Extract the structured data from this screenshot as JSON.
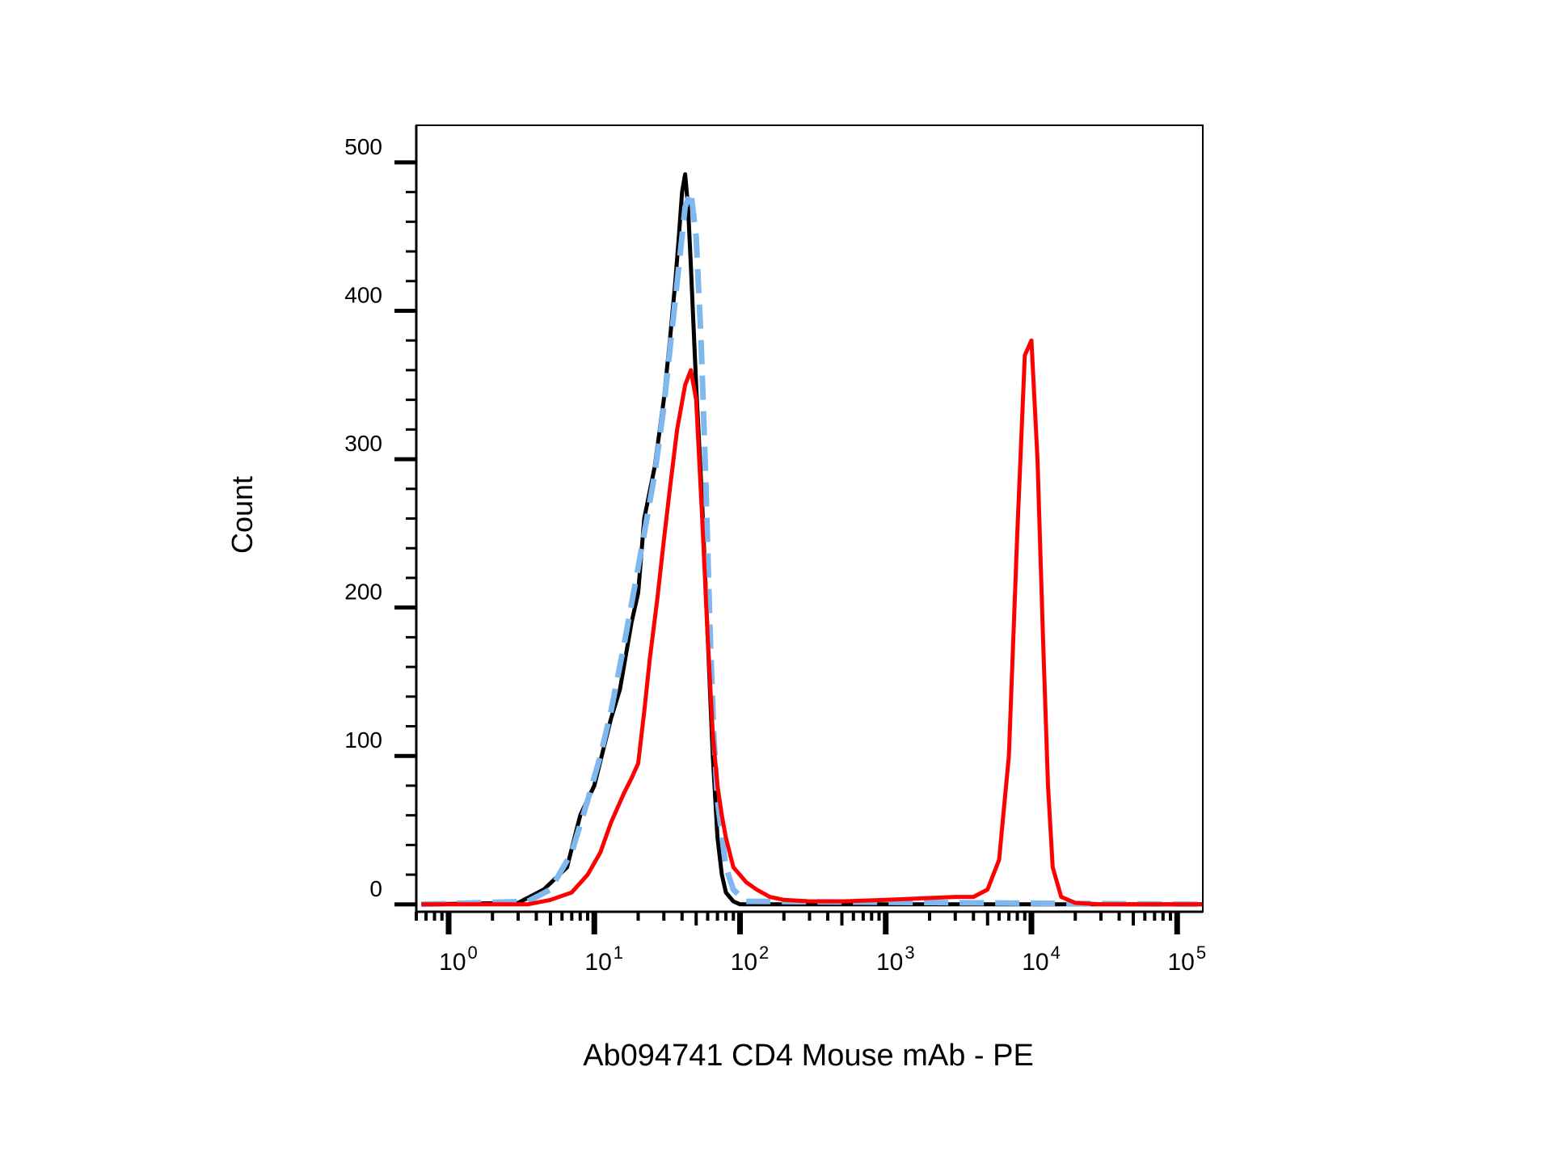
{
  "chart_data": {
    "type": "line",
    "title": "",
    "xlabel": "Ab094741 CD4 Mouse mAb - PE",
    "ylabel": "Count",
    "xscale": "log",
    "xlim": [
      0.6,
      150000
    ],
    "ylim": [
      -5,
      525
    ],
    "yticks": [
      0,
      100,
      200,
      300,
      400,
      500
    ],
    "ytick_labels": [
      "0",
      "100",
      "200",
      "300",
      "400",
      "500"
    ],
    "xticks": [
      1,
      10,
      100,
      1000,
      10000,
      100000
    ],
    "xtick_labels": [
      {
        "base": "10",
        "exp": "0"
      },
      {
        "base": "10",
        "exp": "1"
      },
      {
        "base": "10",
        "exp": "2"
      },
      {
        "base": "10",
        "exp": "3"
      },
      {
        "base": "10",
        "exp": "4"
      },
      {
        "base": "10",
        "exp": "5"
      }
    ],
    "grid": false,
    "legend": "none",
    "series": [
      {
        "color": "#000000",
        "dash": "solid",
        "x": [
          0.65,
          3,
          4.5,
          6.5,
          8,
          10,
          13,
          15,
          18,
          20,
          22,
          26,
          30,
          33,
          36,
          38,
          40,
          42,
          44,
          46,
          50,
          55,
          60,
          65,
          70,
          75,
          80,
          90,
          100,
          150000
        ],
        "y": [
          0,
          1,
          10,
          25,
          60,
          80,
          125,
          145,
          190,
          210,
          260,
          295,
          340,
          380,
          420,
          450,
          480,
          492,
          470,
          430,
          350,
          270,
          180,
          100,
          45,
          20,
          8,
          2,
          0,
          0
        ]
      },
      {
        "color": "#7fb8ee",
        "dash": "dashed",
        "x": [
          0.65,
          3.5,
          5,
          7,
          9,
          11,
          13,
          16,
          19,
          22,
          26,
          30,
          34,
          38,
          42,
          46,
          50,
          54,
          58,
          62,
          66,
          70,
          80,
          90,
          110,
          150000
        ],
        "y": [
          0,
          2,
          10,
          35,
          70,
          100,
          130,
          175,
          215,
          250,
          290,
          335,
          385,
          430,
          470,
          480,
          450,
          380,
          290,
          190,
          115,
          70,
          25,
          10,
          2,
          0
        ]
      },
      {
        "color": "#ff0000",
        "dash": "solid",
        "x": [
          0.65,
          3.5,
          5,
          7,
          9,
          11,
          13,
          16,
          18,
          20,
          22,
          24,
          27,
          30,
          33,
          37,
          42,
          46,
          50,
          55,
          60,
          65,
          70,
          75,
          80,
          90,
          110,
          130,
          160,
          200,
          300,
          500,
          1000,
          3000,
          4000,
          5000,
          6000,
          7000,
          8000,
          9000,
          10000,
          11000,
          12000,
          13000,
          14000,
          16000,
          20000,
          30000,
          150000
        ],
        "y": [
          0,
          0,
          3,
          8,
          20,
          35,
          55,
          75,
          85,
          95,
          130,
          165,
          205,
          245,
          280,
          320,
          350,
          360,
          340,
          260,
          180,
          115,
          80,
          60,
          45,
          25,
          15,
          10,
          5,
          3,
          2,
          2,
          3,
          5,
          5,
          10,
          30,
          100,
          250,
          370,
          380,
          300,
          180,
          80,
          25,
          5,
          1,
          0,
          0
        ]
      }
    ]
  }
}
